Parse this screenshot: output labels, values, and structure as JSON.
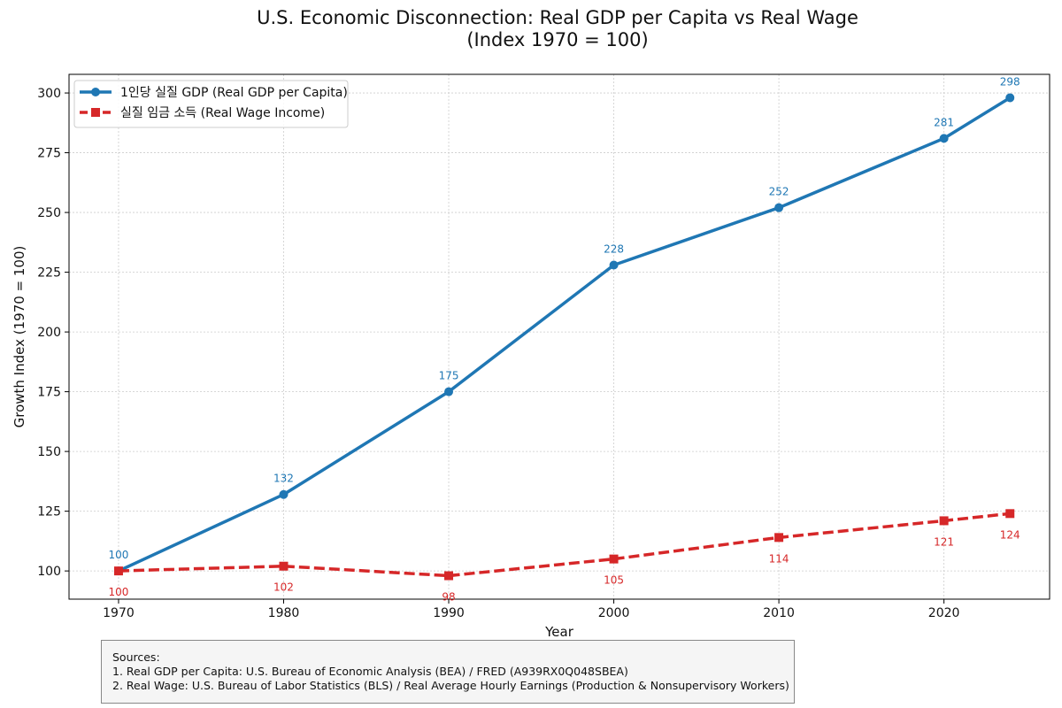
{
  "chart_data": {
    "type": "line",
    "title": "U.S. Economic Disconnection: Real GDP per Capita vs Real Wage",
    "subtitle": "(Index 1970 = 100)",
    "xlabel": "Year",
    "ylabel": "Growth Index (1970 = 100)",
    "x": [
      1970,
      1980,
      1990,
      2000,
      2010,
      2020,
      2024
    ],
    "x_ticks": [
      1970,
      1980,
      1990,
      2000,
      2010,
      2020
    ],
    "y_ticks": [
      100,
      125,
      150,
      175,
      200,
      225,
      250,
      275,
      300
    ],
    "xlim": [
      1967,
      2026.4
    ],
    "ylim": [
      88.2,
      307.8
    ],
    "grid": true,
    "legend_position": "top-left",
    "series": [
      {
        "name": "1인당 실질 GDP (Real GDP per Capita)",
        "values": [
          100,
          132,
          175,
          228,
          252,
          281,
          298
        ],
        "color": "#1f77b4",
        "line_style": "solid",
        "marker": "circle",
        "label_position": "above"
      },
      {
        "name": "실질 임금 소득 (Real Wage Income)",
        "values": [
          100,
          102,
          98,
          105,
          114,
          121,
          124
        ],
        "color": "#d62728",
        "line_style": "dashed",
        "marker": "square",
        "label_position": "below"
      }
    ]
  },
  "sources": {
    "heading": "Sources:",
    "lines": [
      "1. Real GDP per Capita: U.S. Bureau of Economic Analysis (BEA) / FRED (A939RX0Q048SBEA)",
      "2. Real Wage: U.S. Bureau of Labor Statistics (BLS) / Real Average Hourly Earnings (Production & Nonsupervisory Workers)"
    ]
  }
}
